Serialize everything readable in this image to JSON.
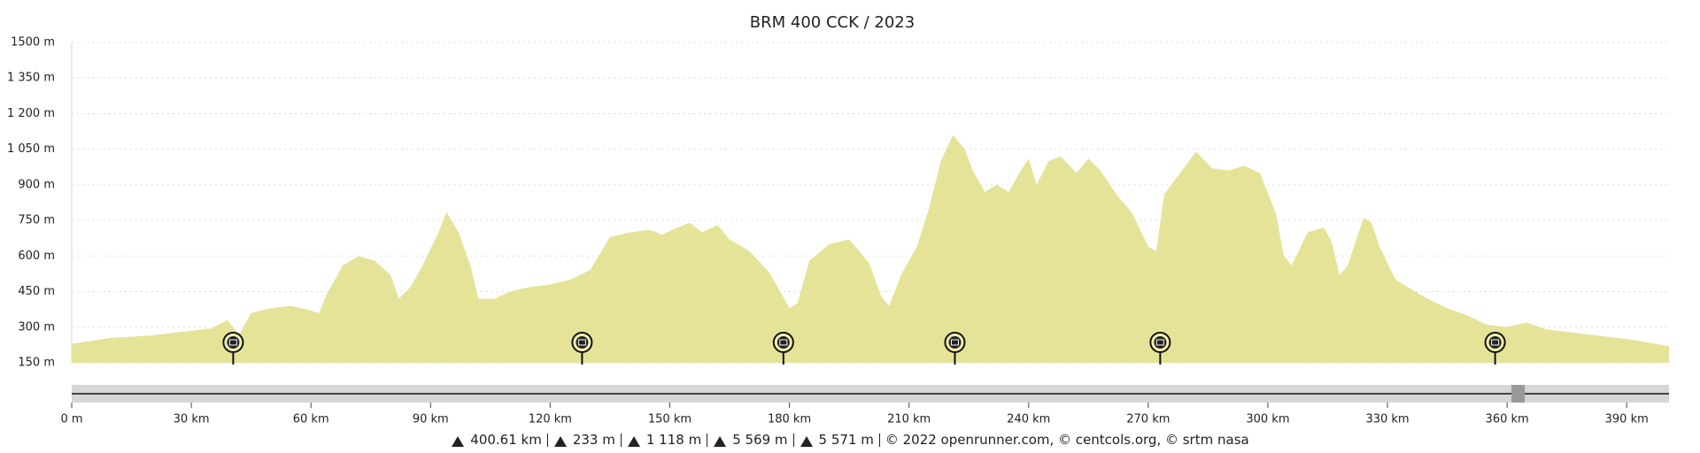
{
  "chart_data": {
    "type": "area",
    "title": "BRM 400 CCK / 2023",
    "x": [
      0,
      10,
      20,
      30,
      35,
      39,
      42,
      45,
      50,
      55,
      60,
      62,
      64,
      68,
      72,
      76,
      80,
      82,
      85,
      88,
      92,
      94,
      97,
      100,
      102,
      106,
      110,
      115,
      120,
      125,
      130,
      135,
      140,
      145,
      148,
      152,
      155,
      158,
      162,
      165,
      170,
      175,
      178,
      180,
      182,
      185,
      190,
      195,
      200,
      203,
      205,
      208,
      212,
      215,
      218,
      221,
      224,
      226,
      229,
      232,
      235,
      238,
      240,
      242,
      245,
      248,
      252,
      255,
      258,
      262,
      266,
      270,
      272,
      274,
      278,
      282,
      286,
      290,
      294,
      298,
      302,
      304,
      306,
      310,
      314,
      316,
      318,
      320,
      324,
      326,
      328,
      332,
      336,
      340,
      345,
      350,
      355,
      360,
      365,
      370,
      380,
      390,
      400.61
    ],
    "values": [
      230,
      255,
      265,
      285,
      295,
      330,
      270,
      360,
      380,
      390,
      370,
      360,
      440,
      560,
      600,
      580,
      520,
      420,
      470,
      560,
      700,
      785,
      700,
      560,
      420,
      420,
      450,
      470,
      480,
      500,
      540,
      680,
      700,
      710,
      690,
      720,
      740,
      700,
      730,
      670,
      620,
      530,
      440,
      380,
      400,
      580,
      650,
      670,
      570,
      430,
      390,
      520,
      640,
      800,
      1000,
      1110,
      1050,
      960,
      870,
      900,
      870,
      960,
      1010,
      900,
      1000,
      1020,
      950,
      1010,
      960,
      860,
      780,
      640,
      620,
      860,
      950,
      1040,
      970,
      960,
      980,
      950,
      780,
      600,
      560,
      700,
      720,
      660,
      520,
      560,
      760,
      740,
      640,
      500,
      460,
      420,
      380,
      350,
      310,
      300,
      320,
      290,
      270,
      250,
      220
    ],
    "color": "#e4e398",
    "markers_x": [
      40.5,
      128,
      178.5,
      221.5,
      273,
      357
    ],
    "xlim": [
      0,
      400.61
    ],
    "ylim": [
      150,
      1500
    ],
    "xticks": [
      {
        "value": 0,
        "label": "0 m"
      },
      {
        "value": 30,
        "label": "30 km"
      },
      {
        "value": 60,
        "label": "60 km"
      },
      {
        "value": 90,
        "label": "90 km"
      },
      {
        "value": 120,
        "label": "120 km"
      },
      {
        "value": 150,
        "label": "150 km"
      },
      {
        "value": 180,
        "label": "180 km"
      },
      {
        "value": 210,
        "label": "210 km"
      },
      {
        "value": 240,
        "label": "240 km"
      },
      {
        "value": 270,
        "label": "270 km"
      },
      {
        "value": 300,
        "label": "300 km"
      },
      {
        "value": 330,
        "label": "330 km"
      },
      {
        "value": 360,
        "label": "360 km"
      },
      {
        "value": 390,
        "label": "390 km"
      }
    ],
    "yticks": [
      {
        "value": 150,
        "label": "150 m"
      },
      {
        "value": 300,
        "label": "300 m"
      },
      {
        "value": 450,
        "label": "450 m"
      },
      {
        "value": 600,
        "label": "600 m"
      },
      {
        "value": 750,
        "label": "750 m"
      },
      {
        "value": 900,
        "label": "900 m"
      },
      {
        "value": 1050,
        "label": "1 050 m"
      },
      {
        "value": 1200,
        "label": "1 200 m"
      },
      {
        "value": 1350,
        "label": "1 350 m"
      },
      {
        "value": 1500,
        "label": "1500 m"
      }
    ],
    "grid": true,
    "footer": [
      "400.61 km",
      "233 m",
      "1 118 m",
      "5 569 m",
      "5 571 m",
      "© 2022 openrunner.com, © centcols.org, © srtm nasa"
    ]
  }
}
